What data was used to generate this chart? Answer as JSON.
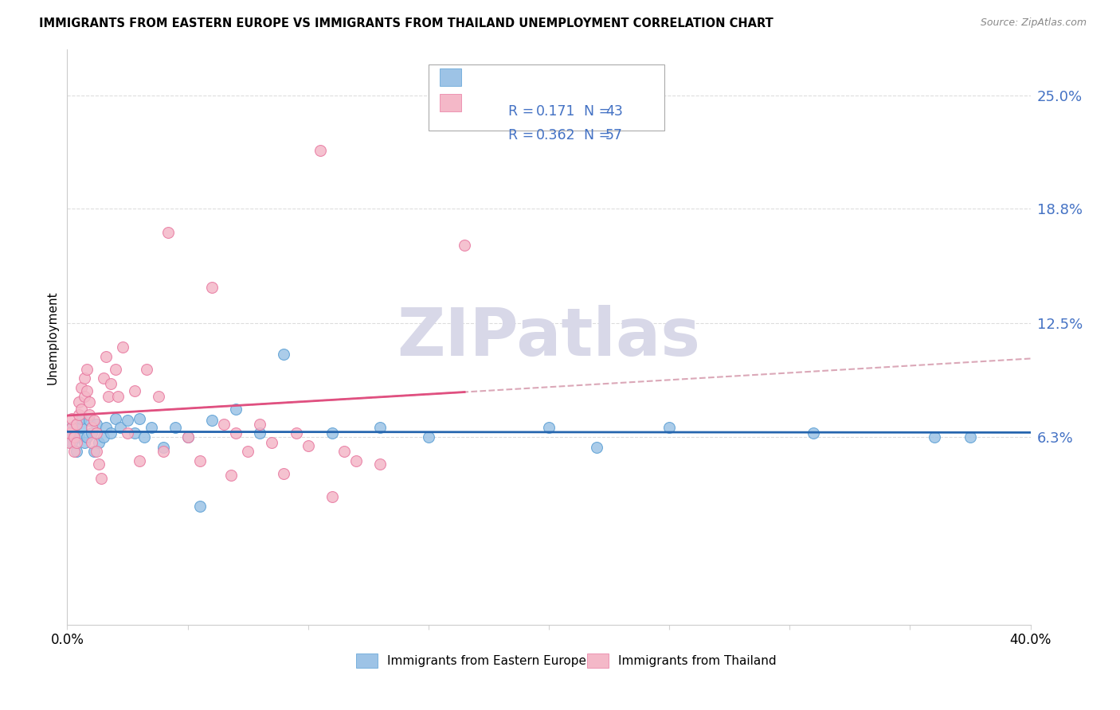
{
  "title": "IMMIGRANTS FROM EASTERN EUROPE VS IMMIGRANTS FROM THAILAND UNEMPLOYMENT CORRELATION CHART",
  "source": "Source: ZipAtlas.com",
  "ylabel": "Unemployment",
  "y_tick_labels": [
    "6.3%",
    "12.5%",
    "18.8%",
    "25.0%"
  ],
  "y_tick_values": [
    0.063,
    0.125,
    0.188,
    0.25
  ],
  "xlim": [
    0.0,
    0.4
  ],
  "ylim": [
    -0.04,
    0.275
  ],
  "x_tick_positions": [
    0.0,
    0.05,
    0.1,
    0.15,
    0.2,
    0.25,
    0.3,
    0.35,
    0.4
  ],
  "x_tick_labels": [
    "0.0%",
    "",
    "",
    "",
    "",
    "",
    "",
    "",
    "40.0%"
  ],
  "legend_text_color": "#4472c4",
  "blue_color": "#9dc3e6",
  "pink_color": "#f4b8c8",
  "blue_scatter_edge": "#5a9fd4",
  "pink_scatter_edge": "#e878a0",
  "blue_line_color": "#2565ae",
  "pink_line_color": "#e05080",
  "pink_dashed_color": "#dba8b8",
  "watermark_color": "#d8d8e8",
  "bottom_legend_blue": "#4472c4",
  "bottom_legend_pink": "#e878a0",
  "blue_scatter_x": [
    0.001,
    0.002,
    0.002,
    0.003,
    0.004,
    0.004,
    0.005,
    0.006,
    0.006,
    0.007,
    0.008,
    0.009,
    0.01,
    0.011,
    0.012,
    0.013,
    0.015,
    0.016,
    0.018,
    0.02,
    0.022,
    0.025,
    0.028,
    0.03,
    0.032,
    0.035,
    0.04,
    0.045,
    0.05,
    0.055,
    0.06,
    0.07,
    0.08,
    0.09,
    0.11,
    0.13,
    0.15,
    0.2,
    0.22,
    0.25,
    0.31,
    0.36,
    0.375
  ],
  "blue_scatter_y": [
    0.063,
    0.06,
    0.068,
    0.065,
    0.055,
    0.07,
    0.063,
    0.068,
    0.073,
    0.06,
    0.063,
    0.072,
    0.065,
    0.055,
    0.07,
    0.06,
    0.063,
    0.068,
    0.065,
    0.073,
    0.068,
    0.072,
    0.065,
    0.073,
    0.063,
    0.068,
    0.057,
    0.068,
    0.063,
    0.025,
    0.072,
    0.078,
    0.065,
    0.108,
    0.065,
    0.068,
    0.063,
    0.068,
    0.057,
    0.068,
    0.065,
    0.063,
    0.063
  ],
  "pink_scatter_x": [
    0.001,
    0.001,
    0.002,
    0.002,
    0.003,
    0.003,
    0.004,
    0.004,
    0.005,
    0.005,
    0.006,
    0.006,
    0.007,
    0.007,
    0.008,
    0.008,
    0.009,
    0.009,
    0.01,
    0.01,
    0.011,
    0.012,
    0.012,
    0.013,
    0.014,
    0.015,
    0.016,
    0.017,
    0.018,
    0.02,
    0.021,
    0.023,
    0.025,
    0.028,
    0.03,
    0.033,
    0.038,
    0.04,
    0.042,
    0.05,
    0.055,
    0.06,
    0.065,
    0.068,
    0.07,
    0.075,
    0.08,
    0.085,
    0.09,
    0.095,
    0.1,
    0.105,
    0.11,
    0.115,
    0.12,
    0.13,
    0.165
  ],
  "pink_scatter_y": [
    0.06,
    0.065,
    0.068,
    0.073,
    0.063,
    0.055,
    0.07,
    0.06,
    0.075,
    0.082,
    0.09,
    0.078,
    0.085,
    0.095,
    0.088,
    0.1,
    0.082,
    0.075,
    0.068,
    0.06,
    0.072,
    0.065,
    0.055,
    0.048,
    0.04,
    0.095,
    0.107,
    0.085,
    0.092,
    0.1,
    0.085,
    0.112,
    0.065,
    0.088,
    0.05,
    0.1,
    0.085,
    0.055,
    0.175,
    0.063,
    0.05,
    0.145,
    0.07,
    0.042,
    0.065,
    0.055,
    0.07,
    0.06,
    0.043,
    0.065,
    0.058,
    0.22,
    0.03,
    0.055,
    0.05,
    0.048,
    0.168
  ],
  "pink_regression_slope": 0.55,
  "pink_regression_intercept": 0.055,
  "blue_regression_slope": 0.018,
  "blue_regression_intercept": 0.061
}
